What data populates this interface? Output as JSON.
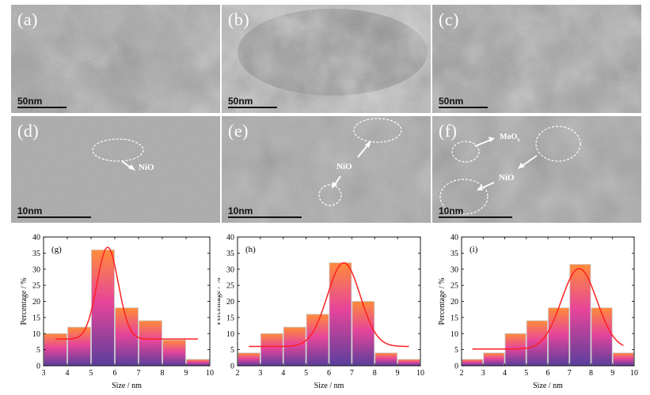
{
  "panels": [
    {
      "label": "(a)",
      "scale": "50nm"
    },
    {
      "label": "(b)",
      "scale": "50nm"
    },
    {
      "label": "(c)",
      "scale": "50nm"
    },
    {
      "label": "(d)",
      "scale": "10nm",
      "annotations": [
        "NiO"
      ]
    },
    {
      "label": "(e)",
      "scale": "10nm",
      "annotations": [
        "NiO"
      ]
    },
    {
      "label": "(f)",
      "scale": "10nm",
      "annotations": [
        "MoO",
        "x",
        "NiO"
      ]
    }
  ],
  "chart_data": [
    {
      "type": "bar",
      "tag": "(g)",
      "x": [
        3.5,
        4.5,
        5.5,
        6.5,
        7.5,
        8.5,
        9.5
      ],
      "values": [
        10,
        12,
        36,
        18,
        14,
        8,
        2
      ],
      "fit": {
        "type": "gaussian",
        "center": 5.7,
        "height": 28.5,
        "sigma": 0.45,
        "baseline": 8.3
      },
      "xlim": [
        3,
        10
      ],
      "ylim": [
        0,
        40
      ],
      "xticks": [
        3,
        4,
        5,
        6,
        7,
        8,
        9,
        10
      ],
      "yticks": [
        0,
        5,
        10,
        15,
        20,
        25,
        30,
        35,
        40
      ],
      "xlabel": "Size / nm",
      "ylabel": "Percentage / %"
    },
    {
      "type": "bar",
      "tag": "(h)",
      "x": [
        2.5,
        3.5,
        4.5,
        5.5,
        6.5,
        7.5,
        8.5,
        9.5
      ],
      "values": [
        4,
        10,
        12,
        16,
        32,
        20,
        4,
        2
      ],
      "fit": {
        "type": "gaussian",
        "center": 6.65,
        "height": 26,
        "sigma": 0.72,
        "baseline": 6
      },
      "xlim": [
        2,
        10
      ],
      "ylim": [
        0,
        40
      ],
      "xticks": [
        2,
        3,
        4,
        5,
        6,
        7,
        8,
        9,
        10
      ],
      "yticks": [
        0,
        5,
        10,
        15,
        20,
        25,
        30,
        35,
        40
      ],
      "xlabel": "Size / nm",
      "ylabel": "Percentage / %"
    },
    {
      "type": "bar",
      "tag": "(i)",
      "x": [
        2.5,
        3.5,
        4.5,
        5.5,
        6.5,
        7.5,
        8.5,
        9.5
      ],
      "values": [
        2,
        4,
        10,
        14,
        18,
        31.5,
        18,
        4
      ],
      "fit": {
        "type": "gaussian",
        "center": 7.45,
        "height": 25,
        "sigma": 0.82,
        "baseline": 5.2
      },
      "xlim": [
        2,
        10
      ],
      "ylim": [
        0,
        40
      ],
      "xticks": [
        2,
        3,
        4,
        5,
        6,
        7,
        8,
        9,
        10
      ],
      "yticks": [
        0,
        5,
        10,
        15,
        20,
        25,
        30,
        35,
        40
      ],
      "xlabel": "Size / nm",
      "ylabel": "Percentage / %"
    }
  ],
  "colors": {
    "bar_top": "#ff8c3a",
    "bar_mid": "#e6459a",
    "bar_bottom": "#5a3e9c",
    "fit_line": "#ff2020",
    "bar_edge": "#c8c8c8"
  }
}
